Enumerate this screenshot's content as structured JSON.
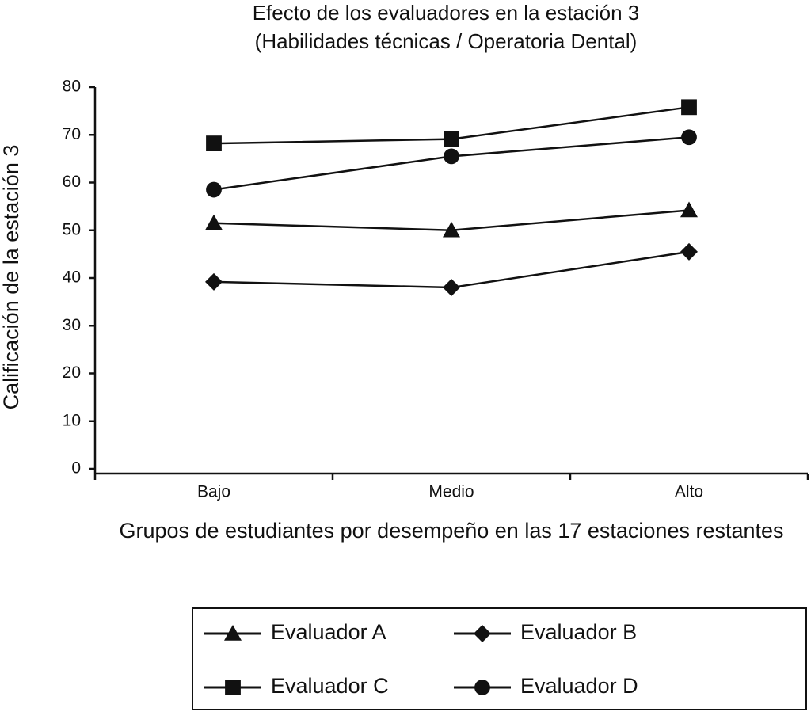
{
  "chart_data": {
    "type": "line",
    "title": "Efecto de los evaluadores en la estación 3",
    "subtitle": "(Habilidades técnicas / Operatoria Dental)",
    "x_label": "Grupos de estudiantes por desempeño en las 17 estaciones restantes",
    "y_label": "Calificación de la estación 3",
    "categories": [
      "Bajo",
      "Medio",
      "Alto"
    ],
    "series": [
      {
        "name": "Evaluador A",
        "color": "#111111",
        "marker": "triangle",
        "values": [
          51.5,
          50,
          54.2
        ]
      },
      {
        "name": "Evaluador B",
        "color": "#111111",
        "marker": "diamond",
        "values": [
          39.2,
          38,
          45.5
        ]
      },
      {
        "name": "Evaluador C",
        "color": "#111111",
        "marker": "square",
        "values": [
          68.2,
          69.1,
          75.8
        ]
      },
      {
        "name": "Evaluador D",
        "color": "#111111",
        "marker": "circle",
        "values": [
          58.5,
          65.5,
          69.5
        ]
      }
    ],
    "ylim": [
      0,
      80
    ],
    "yticks": [
      0,
      10,
      20,
      30,
      40,
      50,
      60,
      70,
      80
    ],
    "grid": false,
    "legend": "bottom"
  }
}
